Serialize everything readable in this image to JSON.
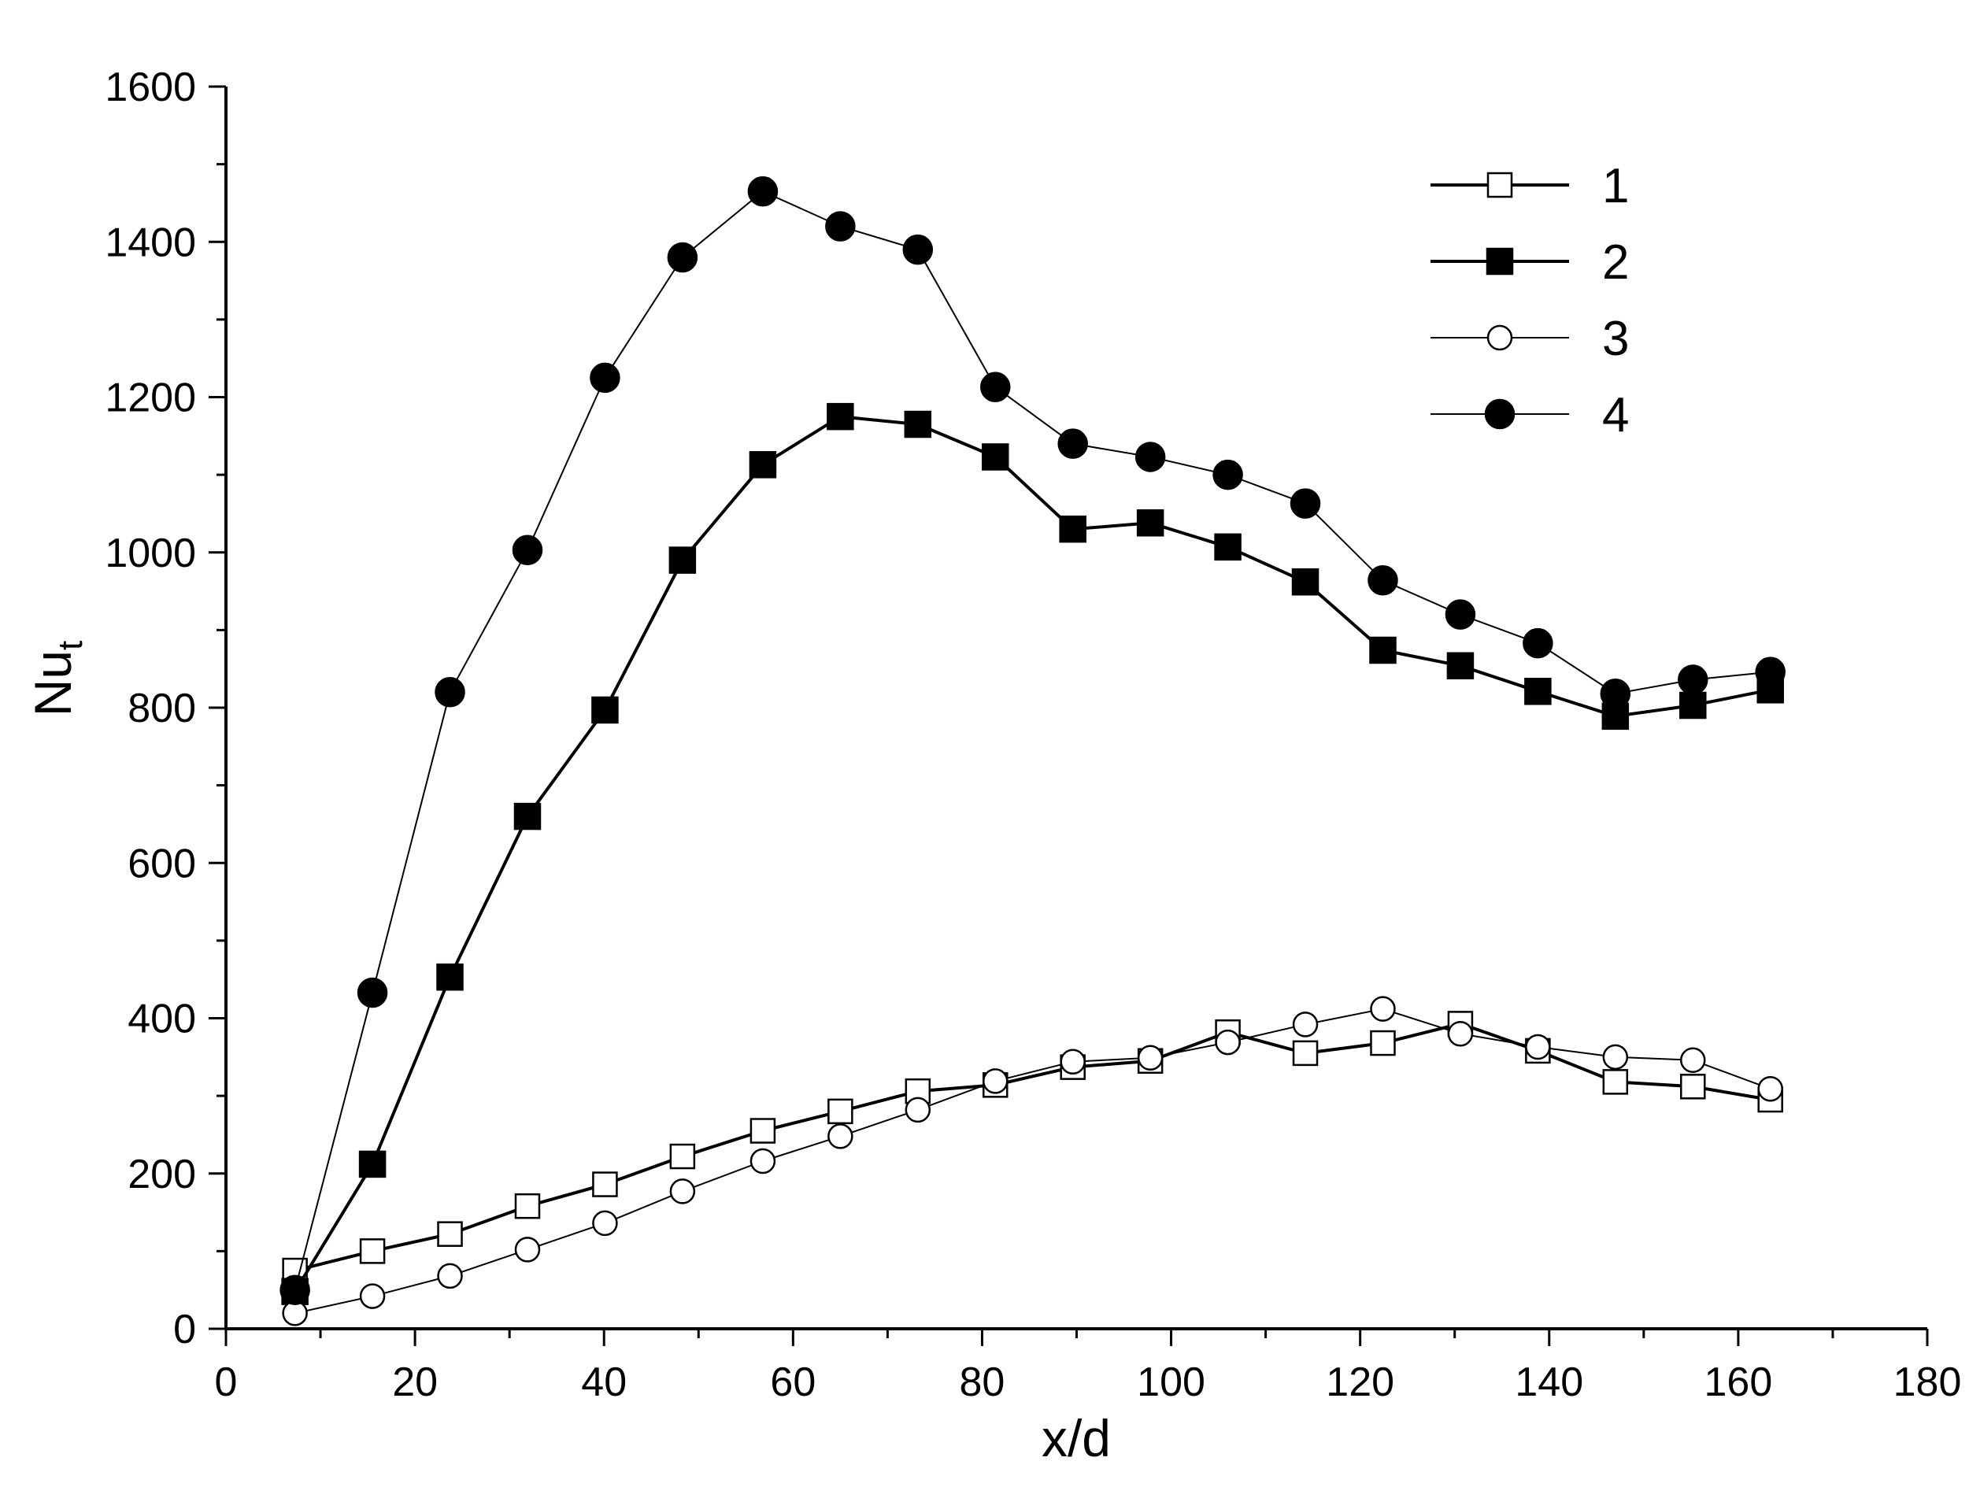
{
  "chart_data": {
    "type": "line",
    "title": "",
    "xlabel": "x/d",
    "ylabel_main": "Nu",
    "ylabel_sub": "t",
    "xlim": [
      0,
      180
    ],
    "ylim": [
      0,
      1600
    ],
    "xticks": [
      0,
      20,
      40,
      60,
      80,
      100,
      120,
      140,
      160,
      180
    ],
    "yticks": [
      0,
      200,
      400,
      600,
      800,
      1000,
      1200,
      1400,
      1600
    ],
    "grid": false,
    "legend_position": "top-right",
    "x": [
      7.3,
      15.5,
      23.7,
      31.9,
      40.1,
      48.3,
      56.8,
      65.0,
      73.2,
      81.4,
      89.6,
      97.8,
      106.0,
      114.2,
      122.4,
      130.6,
      138.8,
      147.0,
      155.2,
      163.4
    ],
    "series": [
      {
        "name": "1",
        "marker": "square",
        "filled": false,
        "line": "thick",
        "values": [
          75,
          100,
          122,
          158,
          186,
          222,
          255,
          280,
          306,
          314,
          337,
          345,
          382,
          355,
          368,
          393,
          358,
          318,
          312,
          295
        ]
      },
      {
        "name": "2",
        "marker": "square",
        "filled": true,
        "line": "thick",
        "values": [
          48,
          212,
          453,
          660,
          797,
          990,
          1113,
          1175,
          1165,
          1123,
          1030,
          1038,
          1007,
          962,
          874,
          854,
          821,
          789,
          803,
          823
        ]
      },
      {
        "name": "3",
        "marker": "circle",
        "filled": false,
        "line": "thin",
        "values": [
          20,
          42,
          68,
          102,
          136,
          177,
          216,
          248,
          282,
          319,
          344,
          349,
          369,
          392,
          412,
          380,
          363,
          350,
          346,
          309
        ]
      },
      {
        "name": "4",
        "marker": "circle",
        "filled": true,
        "line": "thin",
        "values": [
          50,
          433,
          820,
          1003,
          1225,
          1380,
          1465,
          1420,
          1390,
          1213,
          1140,
          1123,
          1100,
          1063,
          964,
          920,
          883,
          818,
          836,
          846
        ]
      }
    ]
  }
}
